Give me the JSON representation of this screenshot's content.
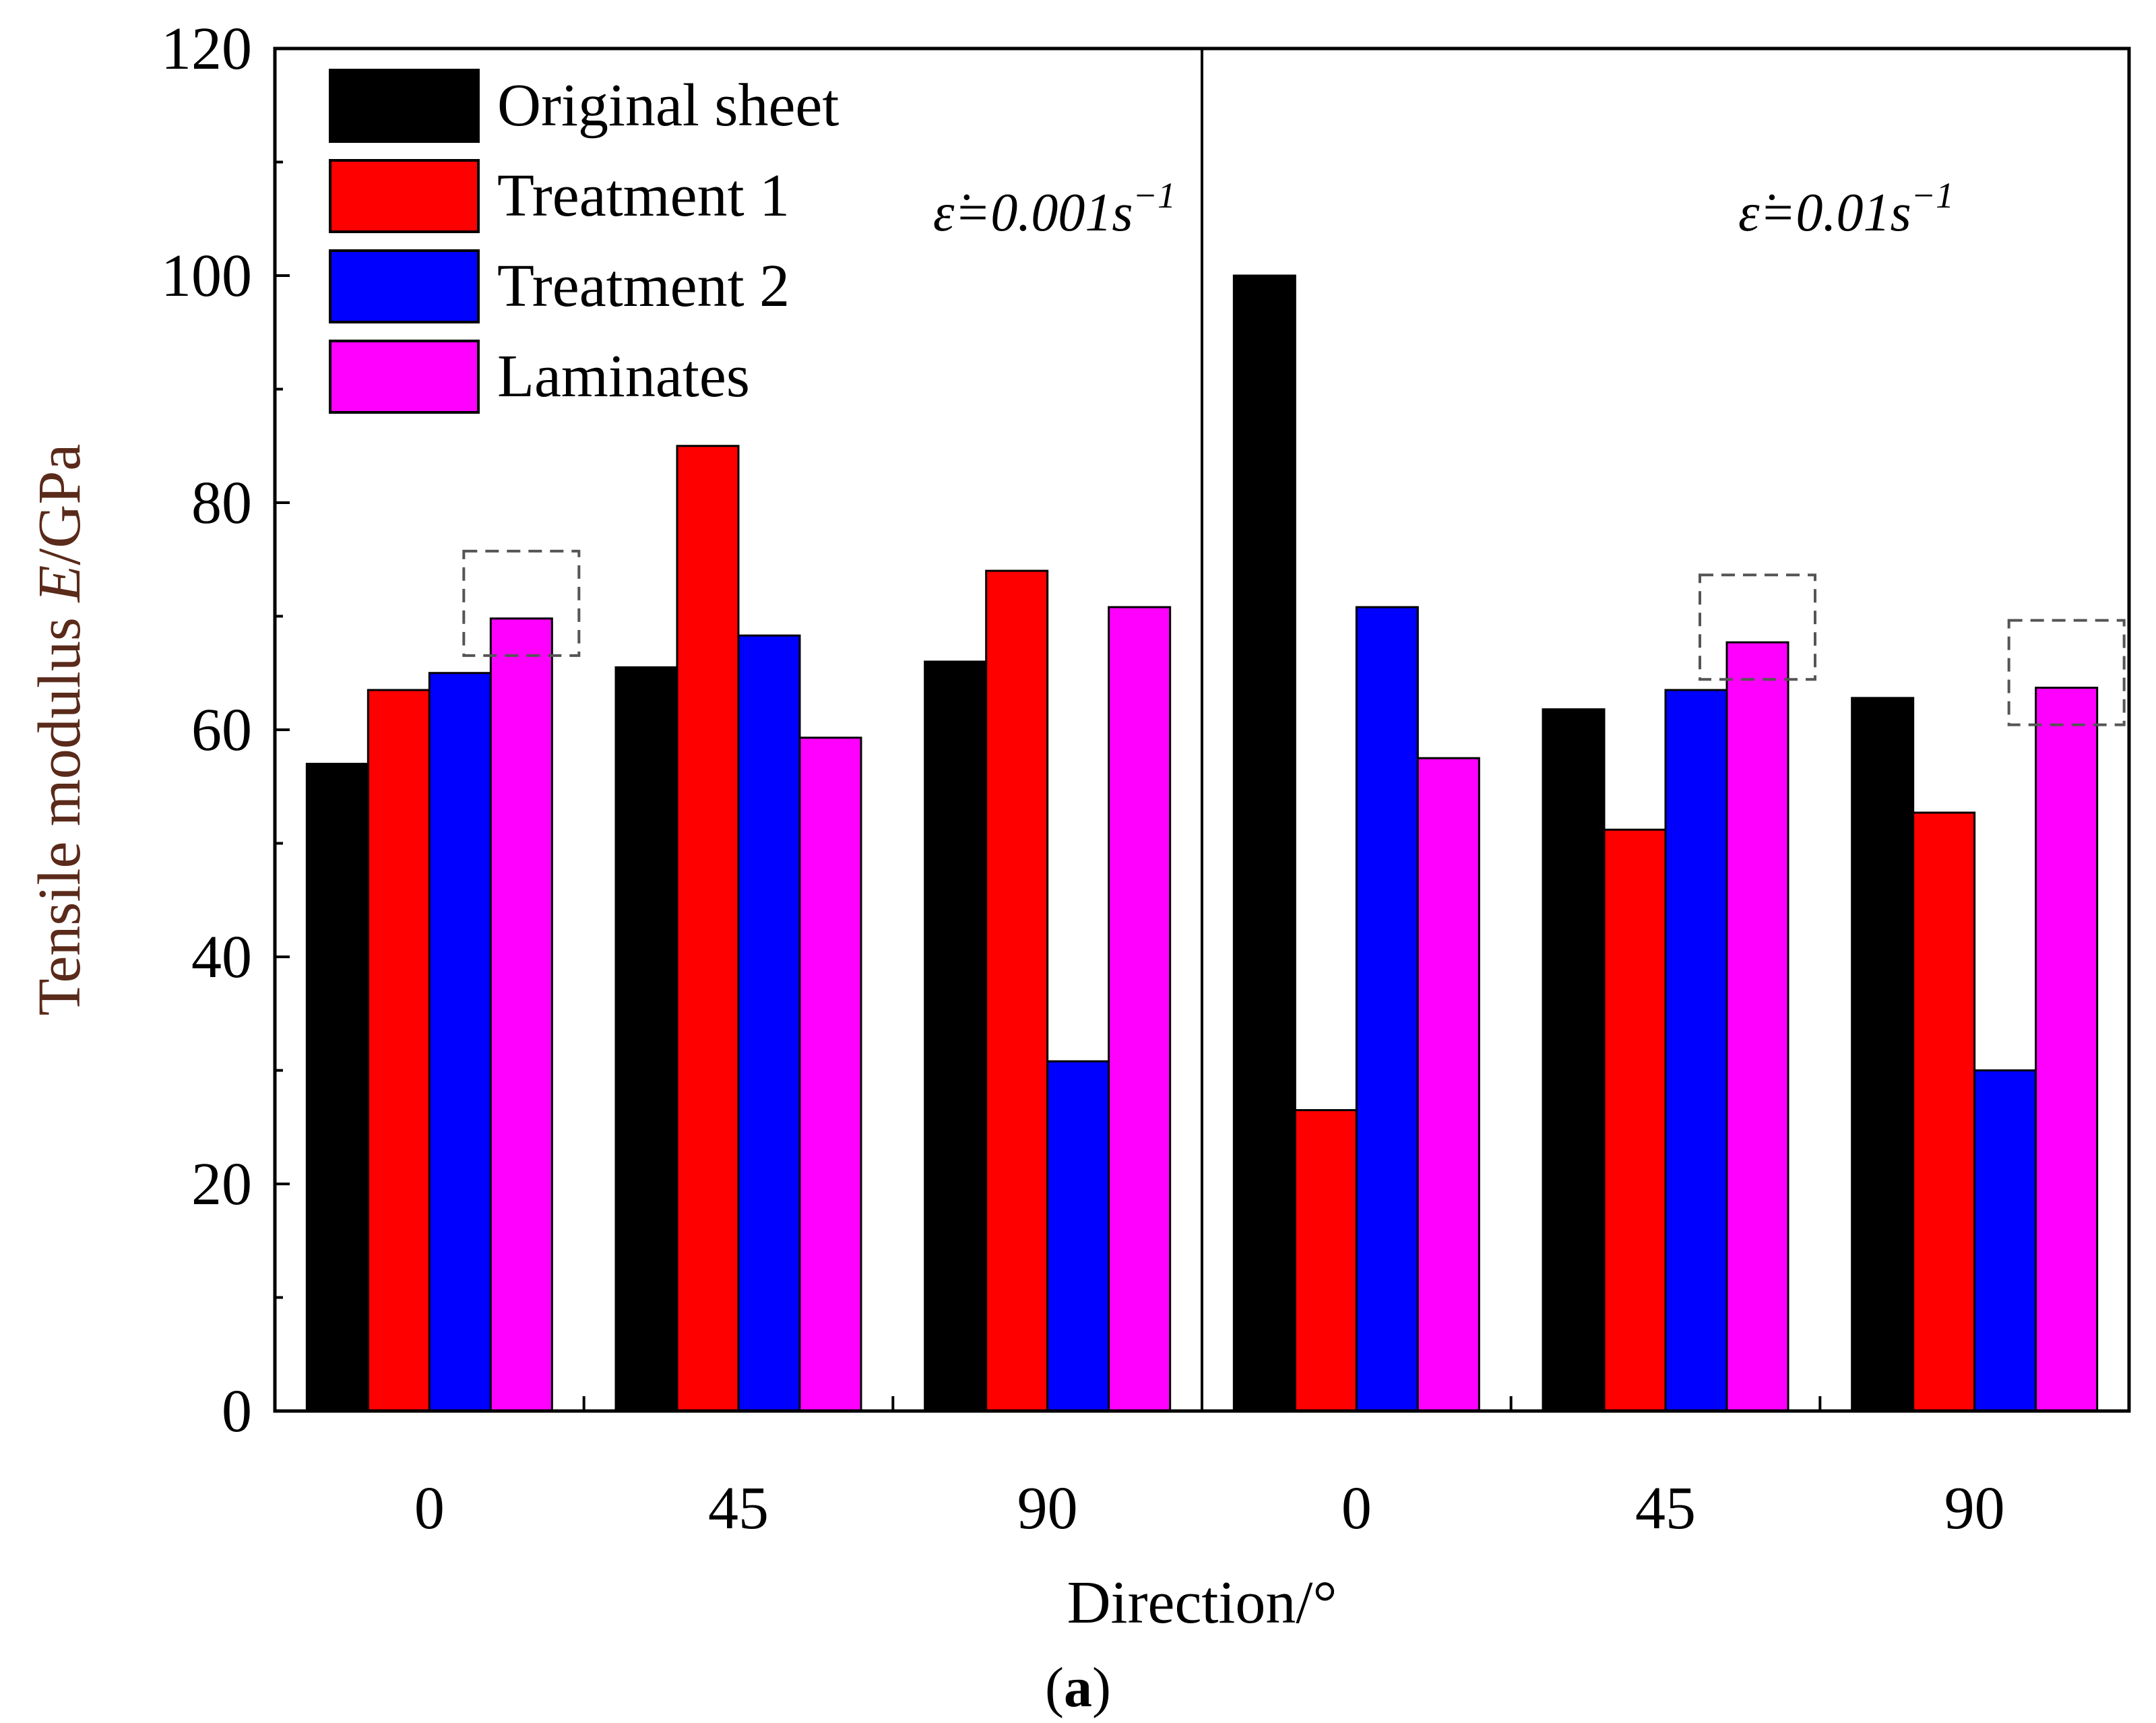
{
  "colors": {
    "Original sheet": "#000000",
    "Treatment 1": "#ff0000",
    "Treatment 2": "#0000ff",
    "Laminates": "#ff00ff"
  },
  "chart_data": {
    "type": "bar",
    "xlabel": "Direction/°",
    "ylabel_prefix": "Tensile modulus ",
    "ylabel_var": "E",
    "ylabel_suffix": "/GPa",
    "ylim": [
      0,
      120
    ],
    "yticks": [
      0,
      20,
      40,
      60,
      80,
      100,
      120
    ],
    "legend_position": "top-left",
    "caption_open": "(",
    "caption_letter": "a",
    "caption_close": ")",
    "panels": [
      {
        "rate_label": "ε̇=0.001s",
        "rate_exponent": "−1",
        "categories": [
          "0",
          "45",
          "90"
        ],
        "series": [
          {
            "name": "Original sheet",
            "values": [
              57,
              65.5,
              66
            ]
          },
          {
            "name": "Treatment 1",
            "values": [
              63.5,
              85,
              74
            ]
          },
          {
            "name": "Treatment 2",
            "values": [
              65,
              68.3,
              30.8
            ]
          },
          {
            "name": "Laminates",
            "values": [
              69.8,
              59.3,
              70.8
            ]
          }
        ],
        "highlighted": [
          {
            "series": "Laminates",
            "category": "0"
          }
        ]
      },
      {
        "rate_label": "ε̇=0.01s",
        "rate_exponent": "−1",
        "categories": [
          "0",
          "45",
          "90"
        ],
        "series": [
          {
            "name": "Original sheet",
            "values": [
              100,
              61.8,
              62.8
            ]
          },
          {
            "name": "Treatment 1",
            "values": [
              26.5,
              51.2,
              52.7
            ]
          },
          {
            "name": "Treatment 2",
            "values": [
              70.8,
              63.5,
              30
            ]
          },
          {
            "name": "Laminates",
            "values": [
              57.5,
              67.7,
              63.7
            ]
          }
        ],
        "highlighted": [
          {
            "series": "Laminates",
            "category": "45"
          },
          {
            "series": "Laminates",
            "category": "90"
          }
        ]
      }
    ]
  }
}
